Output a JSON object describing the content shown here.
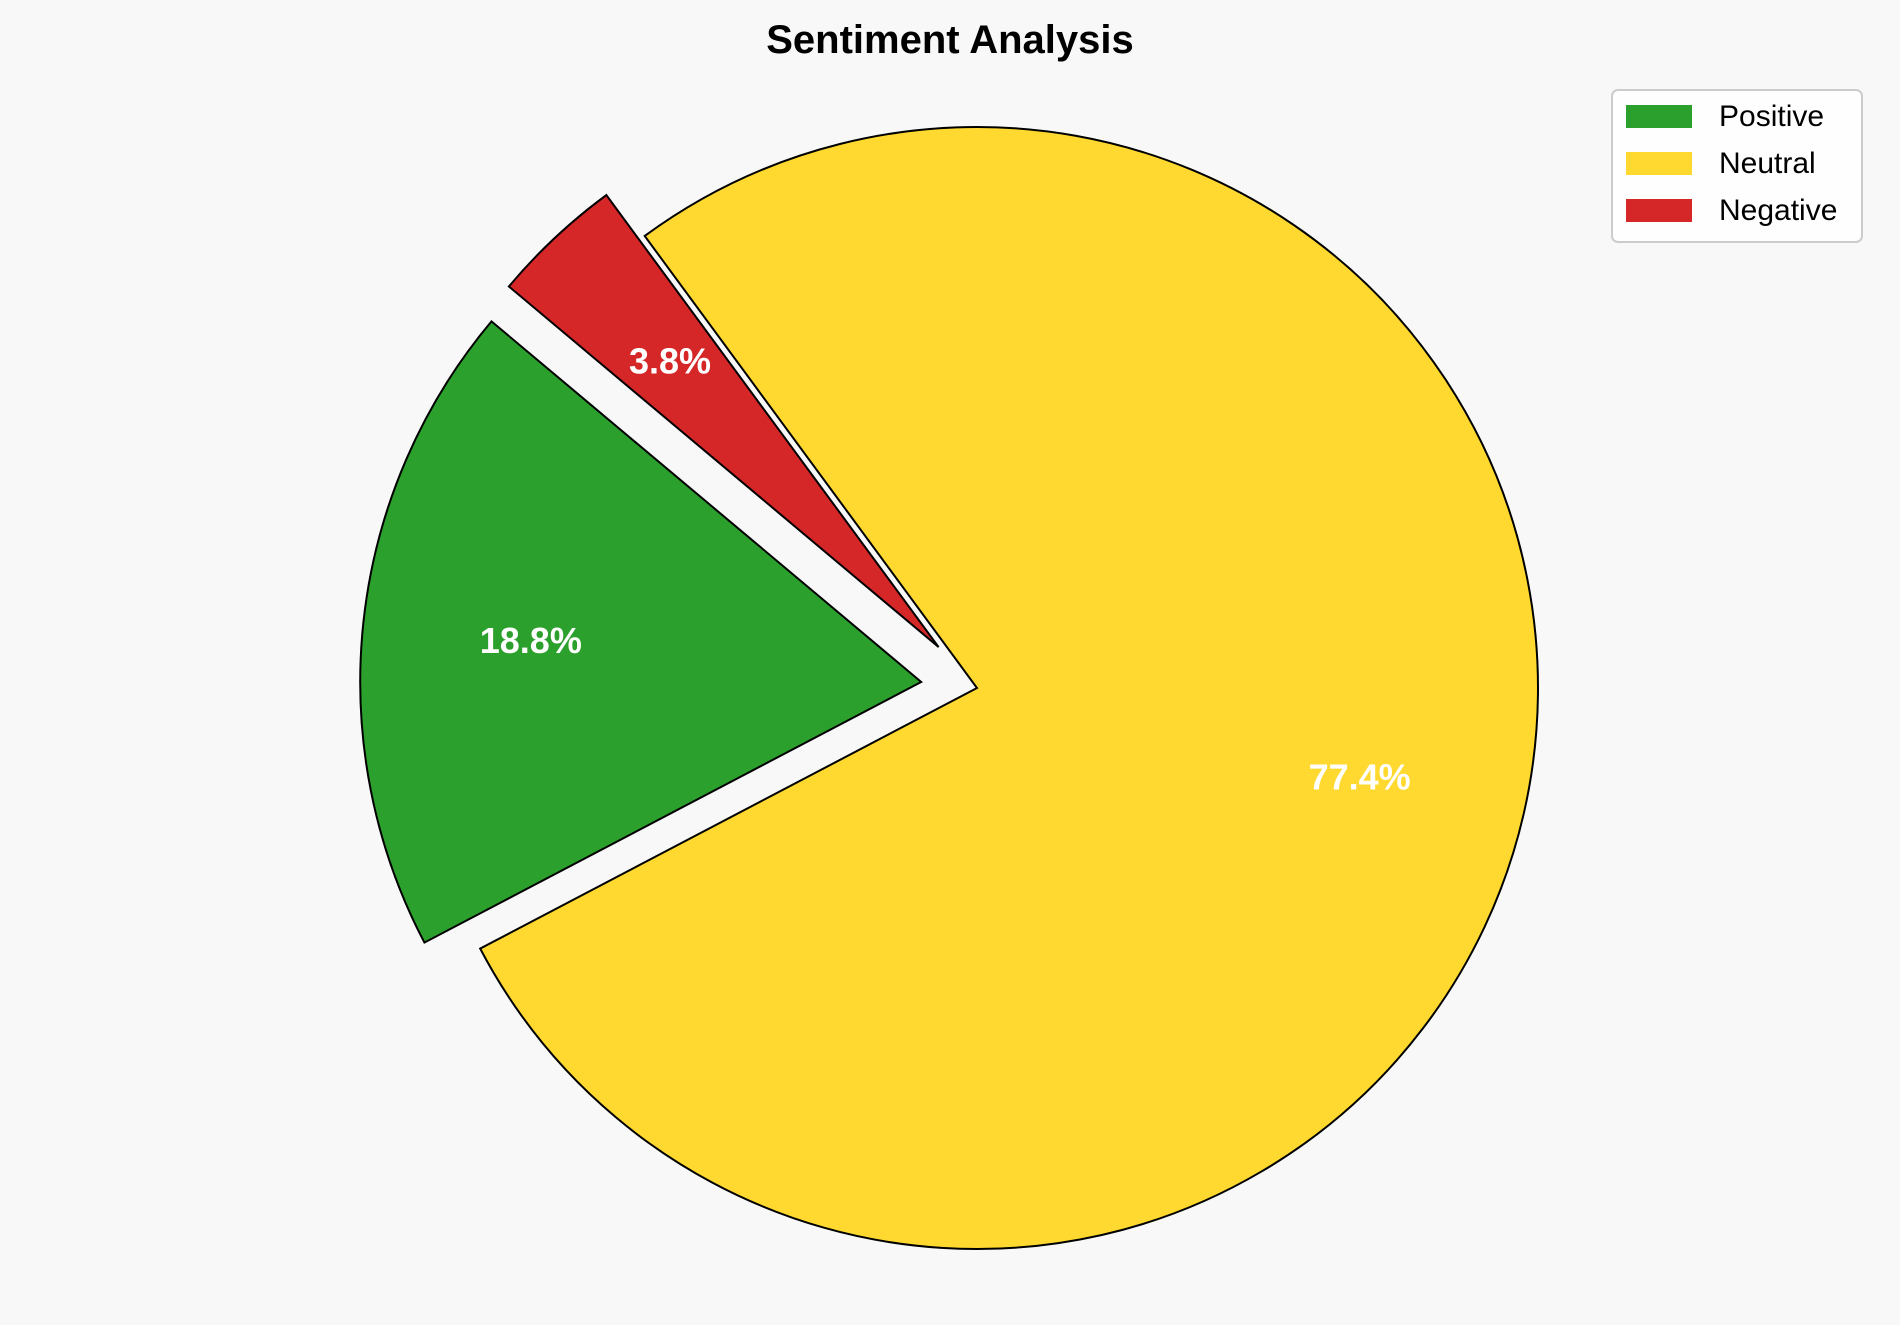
{
  "chart_data": {
    "type": "pie",
    "title": "Sentiment Analysis",
    "categories": [
      "Positive",
      "Neutral",
      "Negative"
    ],
    "values": [
      18.8,
      77.4,
      3.8
    ],
    "labels": [
      "18.8%",
      "77.4%",
      "3.8%"
    ],
    "colors": [
      "#2ca02c",
      "#ffd92f",
      "#d62728"
    ],
    "exploded": [
      true,
      false,
      true
    ],
    "start_angle_deg": 140,
    "counterclockwise": true,
    "legend": {
      "placement": "top-right",
      "entries": [
        "Positive",
        "Neutral",
        "Negative"
      ]
    },
    "background": "#f8f8f8"
  }
}
